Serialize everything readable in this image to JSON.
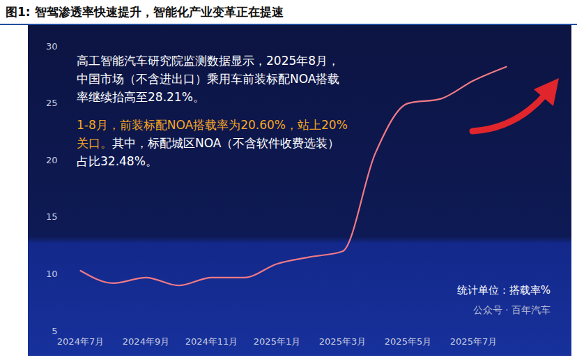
{
  "chart_data": {
    "type": "line",
    "title": "图1: 智驾渗透率快速提升，智能化产业变革正在提速",
    "x": [
      "2024-07",
      "2024-08",
      "2024-09",
      "2024-10",
      "2024-11",
      "2024-12",
      "2025-01",
      "2025-02",
      "2025-03",
      "2025-04",
      "2025-05",
      "2025-06",
      "2025-07",
      "2025-08"
    ],
    "values": [
      10.3,
      9.2,
      9.7,
      9.0,
      9.7,
      9.7,
      10.9,
      11.5,
      12.0,
      20.6,
      25.0,
      25.4,
      27.0,
      28.21
    ],
    "color": "#f07a86",
    "marker": "none",
    "line_style": "solid",
    "grid": false,
    "ylim": [
      5,
      30
    ],
    "yticks": [
      5,
      10,
      15,
      20,
      25,
      30
    ],
    "xticks": [
      {
        "value": "2024-07",
        "label": "2024年7月"
      },
      {
        "value": "2024-09",
        "label": "2024年9月"
      },
      {
        "value": "2024-11",
        "label": "2024年11月"
      },
      {
        "value": "2025-01",
        "label": "2025年1月"
      },
      {
        "value": "2025-03",
        "label": "2025年3月"
      },
      {
        "value": "2025-05",
        "label": "2025年5月"
      },
      {
        "value": "2025-07",
        "label": "2025年7月"
      }
    ],
    "annotations": {
      "main": "高工智能汽车研究院监测数据显示，2025年8月，中国市场（不含进出口）乘用车前装标配NOA搭载率继续抬高至28.21%。",
      "highlight": "1-8月，前装标配NOA搭载率为20.60%，站上20%关口。",
      "detail": "其中，标配城区NOA（不含软件收费选装）占比32.48%。",
      "unit": "统计单位：搭载率%",
      "source": "公众号 · 百年汽车"
    }
  }
}
